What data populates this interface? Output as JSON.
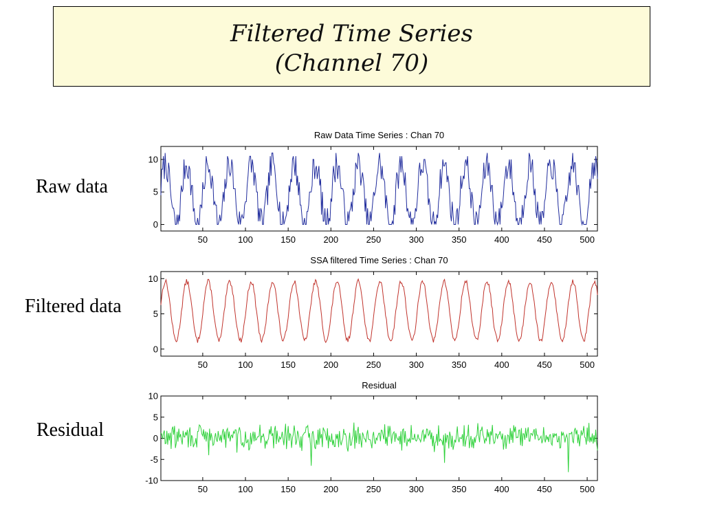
{
  "slide": {
    "title_line1": "Filtered Time Series",
    "title_line2": "(Channel 70)",
    "labels": {
      "raw": "Raw data",
      "filtered": "Filtered data",
      "residual": "Residual"
    }
  },
  "chart_data": [
    {
      "type": "line",
      "title": "Raw Data Time Series : Chan 70",
      "color": "#1f2b9c",
      "xlim": [
        1,
        512
      ],
      "ylim": [
        -1,
        12
      ],
      "xticks": [
        50,
        100,
        150,
        200,
        250,
        300,
        350,
        400,
        450,
        500
      ],
      "yticks": [
        0,
        5,
        10
      ],
      "series": [
        {
          "period": 25.1,
          "low": 0,
          "high": 9.3,
          "noise": 2.2,
          "seed": 7,
          "values": []
        }
      ]
    },
    {
      "type": "line",
      "title": "SSA filtered Time Series : Chan 70",
      "color": "#c0322b",
      "xlim": [
        1,
        512
      ],
      "ylim": [
        -1,
        11
      ],
      "xticks": [
        50,
        100,
        150,
        200,
        250,
        300,
        350,
        400,
        450,
        500
      ],
      "yticks": [
        0,
        5,
        10
      ],
      "series": [
        {
          "period": 25.1,
          "low": 1.2,
          "high": 9.6,
          "noise": 0.35,
          "seed": 13,
          "values": []
        }
      ]
    },
    {
      "type": "line",
      "title": "Residual",
      "color": "#2ed13a",
      "xlim": [
        1,
        512
      ],
      "ylim": [
        -10,
        10
      ],
      "xticks": [
        50,
        100,
        150,
        200,
        250,
        300,
        350,
        400,
        450,
        500
      ],
      "yticks": [
        -10,
        -5,
        0,
        5,
        10
      ],
      "series": [
        {
          "mean": 0.3,
          "noise": 1.4,
          "seed": 29,
          "spikes": [
            [
              57,
              -4
            ],
            [
              177,
              -6.5
            ],
            [
              333,
              -5.8
            ],
            [
              478,
              -8
            ]
          ],
          "values": []
        }
      ]
    }
  ]
}
